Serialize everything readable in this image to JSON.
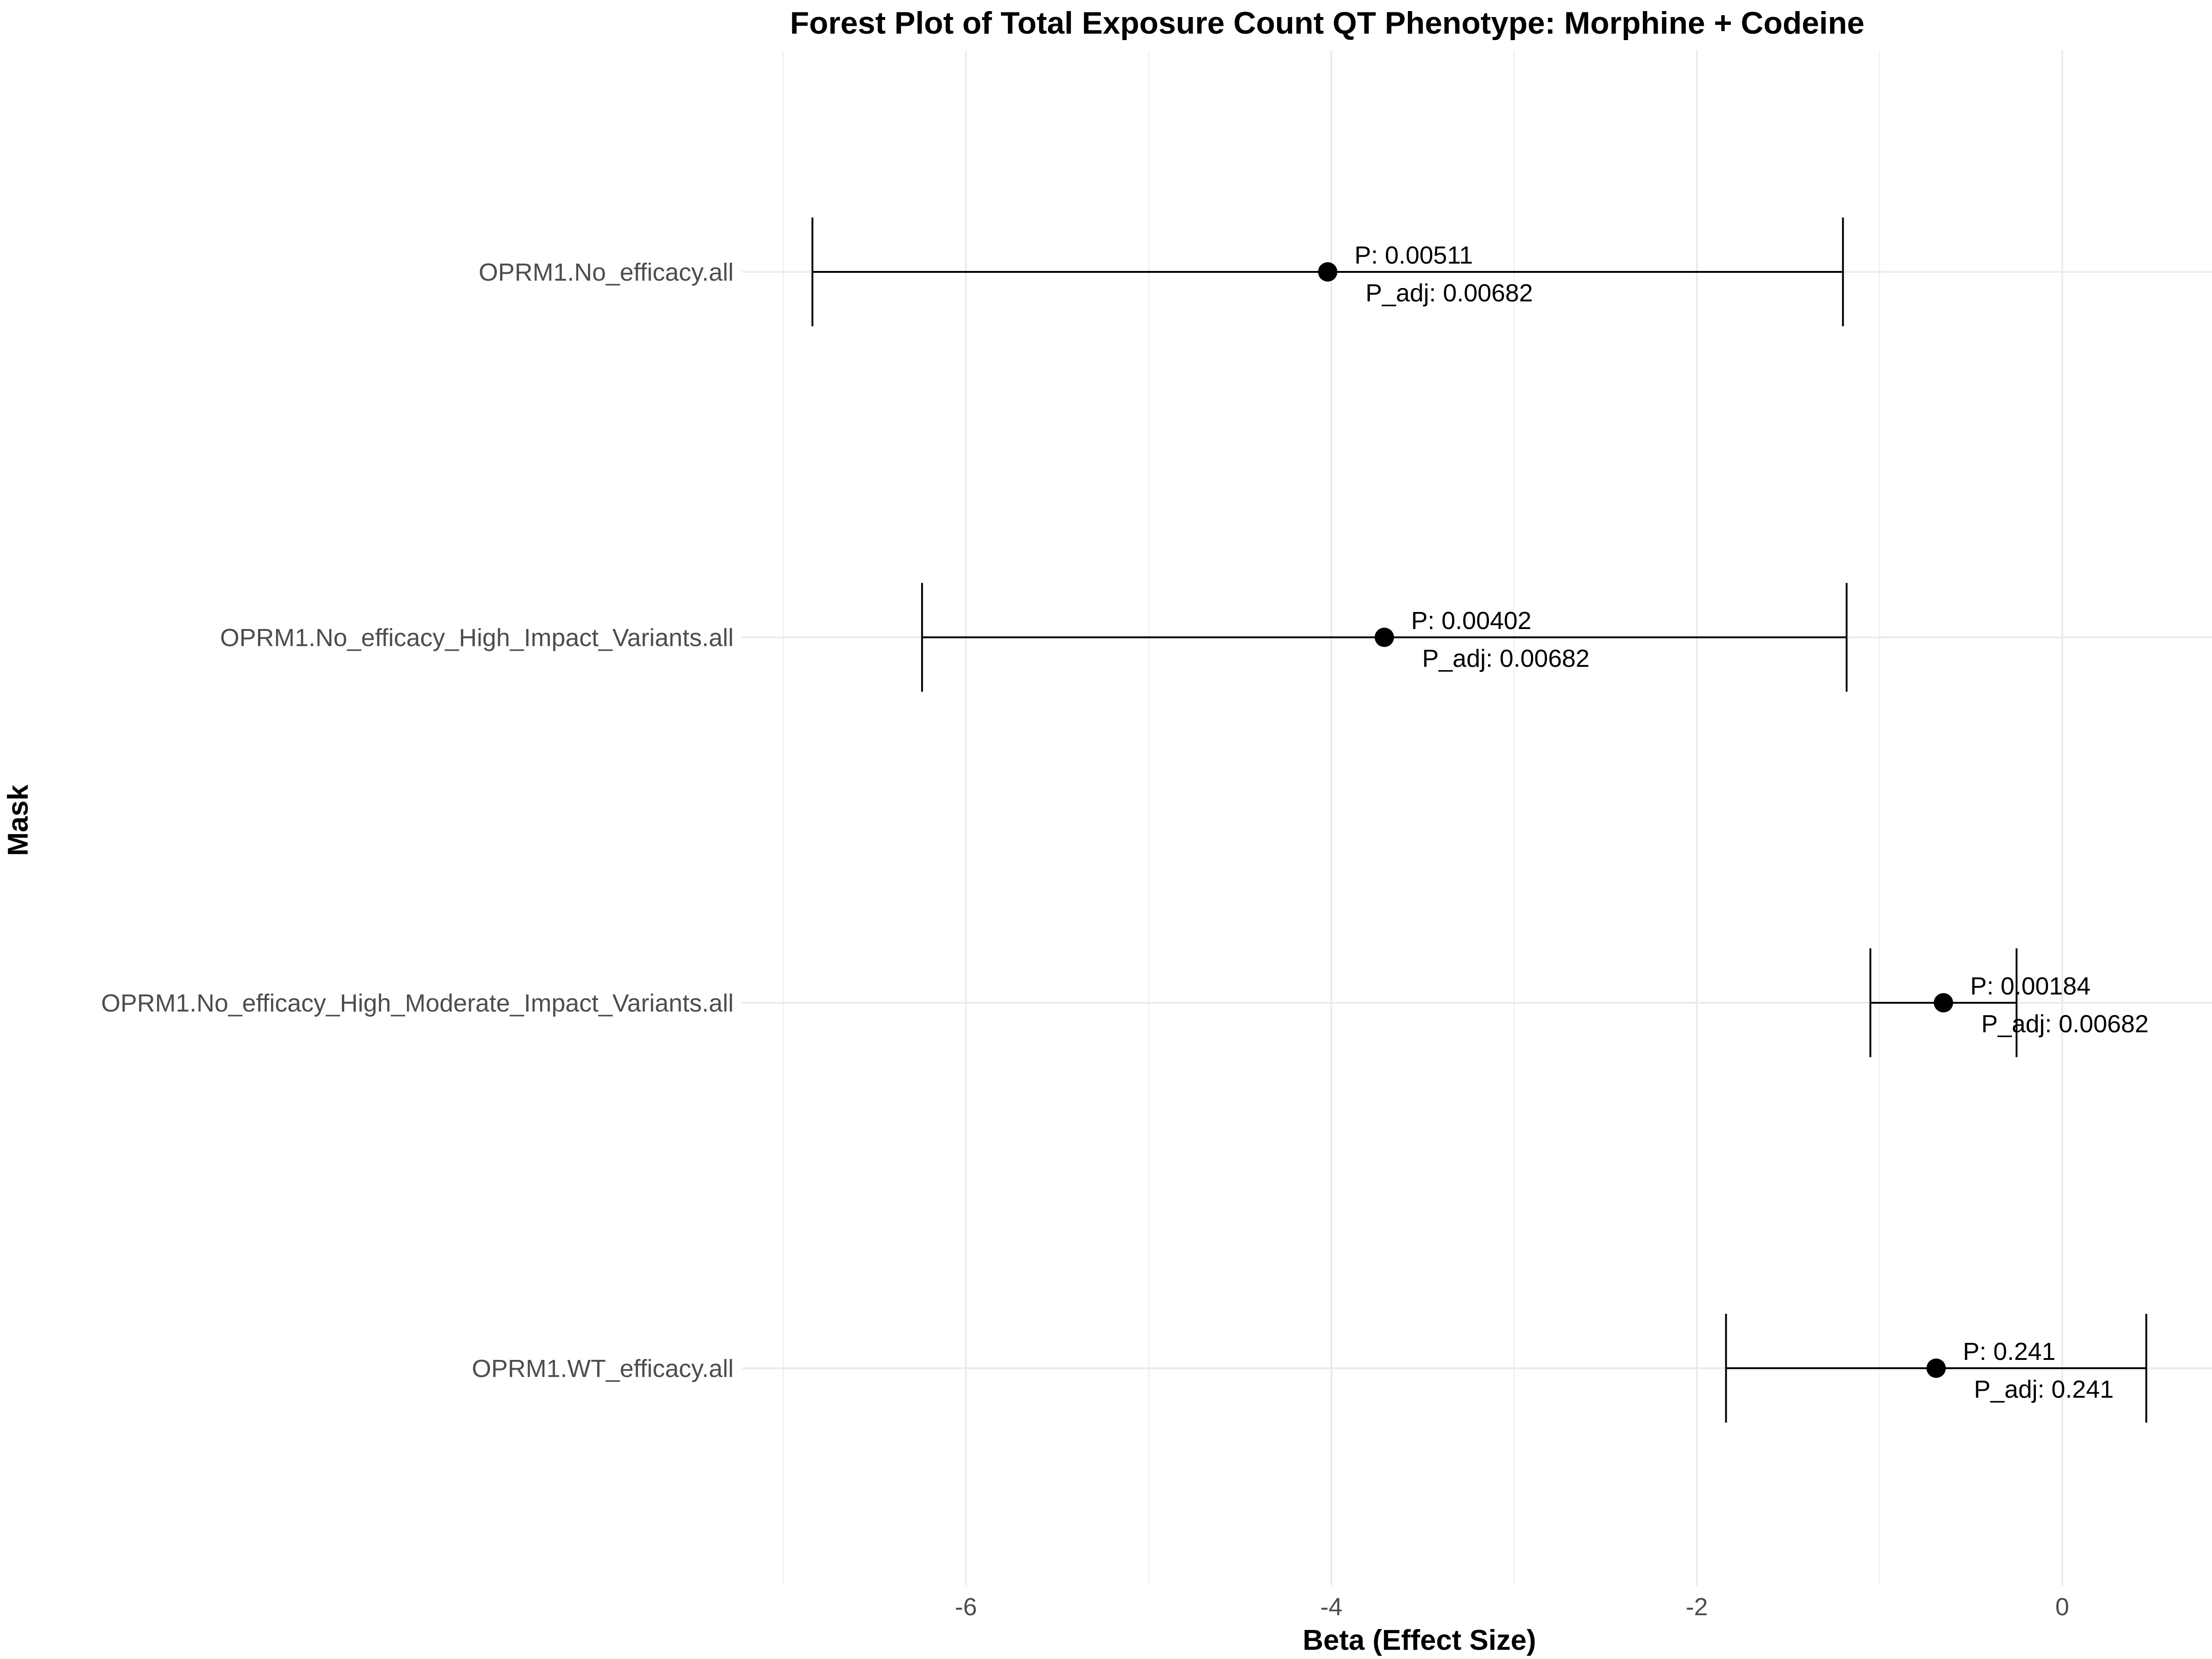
{
  "chart_data": {
    "type": "forest",
    "title": "Forest Plot of Total Exposure Count QT Phenotype: Morphine + Codeine",
    "xlabel": "Beta (Effect Size)",
    "ylabel": "Mask",
    "xlim": [
      -7.0,
      0.8
    ],
    "x_ticks": [
      -6,
      -4,
      -2,
      0
    ],
    "x_tick_labels": [
      "-6",
      "-4",
      "-2",
      "0"
    ],
    "grid": true,
    "legend": "none",
    "point_color": "#000000",
    "rows": [
      {
        "label": "OPRM1.No_efficacy.all",
        "beta": -4.02,
        "ci_low": -6.84,
        "ci_high": -1.2,
        "p_label": "P: 0.00511",
        "p_adj_label": "P_adj: 0.00682"
      },
      {
        "label": "OPRM1.No_efficacy_High_Impact_Variants.all",
        "beta": -3.71,
        "ci_low": -6.24,
        "ci_high": -1.18,
        "p_label": "P: 0.00402",
        "p_adj_label": "P_adj: 0.00682"
      },
      {
        "label": "OPRM1.No_efficacy_High_Moderate_Impact_Variants.all",
        "beta": -0.65,
        "ci_low": -1.05,
        "ci_high": -0.25,
        "p_label": "P: 0.00184",
        "p_adj_label": "P_adj: 0.00682"
      },
      {
        "label": "OPRM1.WT_efficacy.all",
        "beta": -0.69,
        "ci_low": -1.84,
        "ci_high": 0.46,
        "p_label": "P: 0.241",
        "p_adj_label": "P_adj: 0.241"
      }
    ]
  }
}
